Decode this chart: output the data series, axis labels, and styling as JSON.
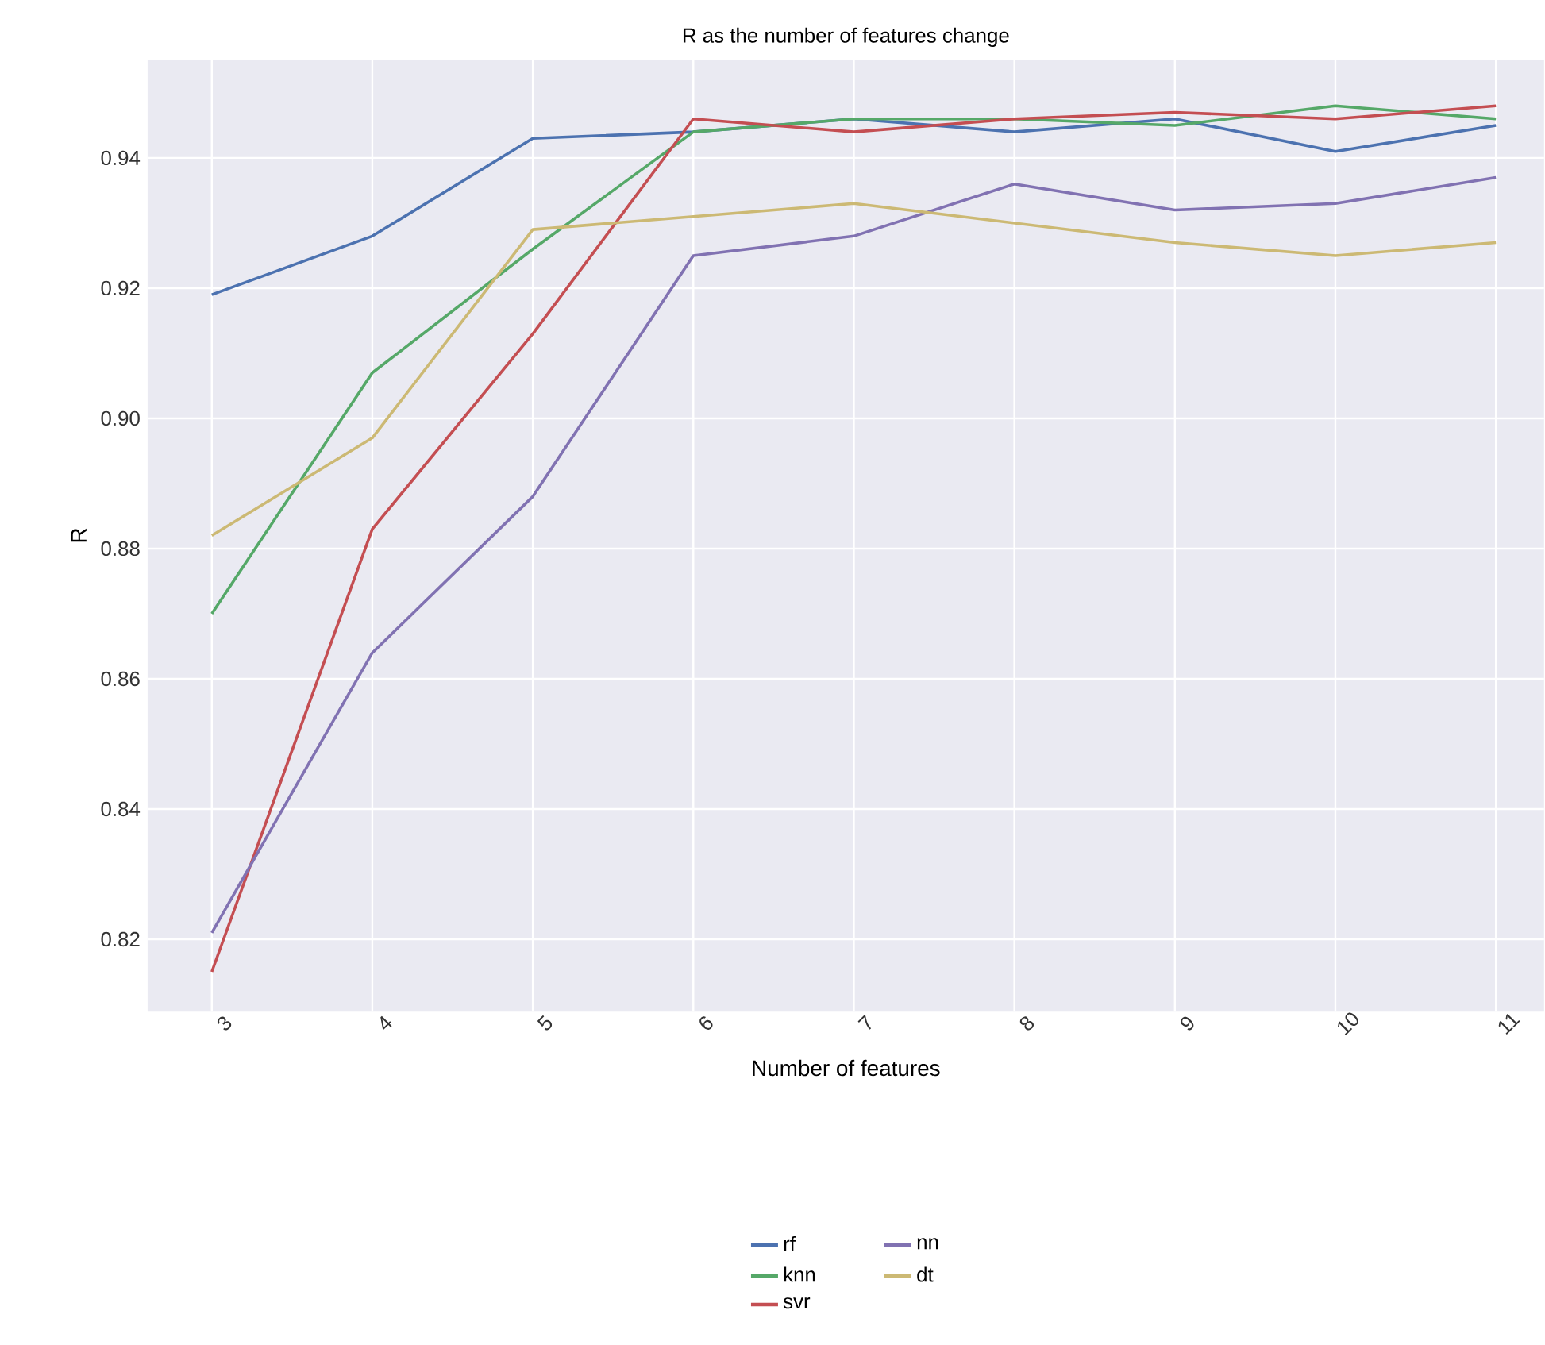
{
  "chart_data": {
    "type": "line",
    "title": "R as the number of features change",
    "xlabel": "Number of features",
    "ylabel": "R",
    "x": [
      3,
      4,
      5,
      6,
      7,
      8,
      9,
      10,
      11
    ],
    "series": [
      {
        "name": "rf",
        "color": "#4c72b0",
        "values": [
          0.919,
          0.928,
          0.943,
          0.944,
          0.946,
          0.944,
          0.946,
          0.941,
          0.945
        ]
      },
      {
        "name": "knn",
        "color": "#55a868",
        "values": [
          0.87,
          0.907,
          0.926,
          0.944,
          0.946,
          0.946,
          0.945,
          0.948,
          0.946
        ]
      },
      {
        "name": "svr",
        "color": "#c44e52",
        "values": [
          0.815,
          0.883,
          0.913,
          0.946,
          0.944,
          0.946,
          0.947,
          0.946,
          0.948
        ]
      },
      {
        "name": "nn",
        "color": "#8172b2",
        "values": [
          0.821,
          0.864,
          0.888,
          0.925,
          0.928,
          0.936,
          0.932,
          0.933,
          0.937
        ]
      },
      {
        "name": "dt",
        "color": "#ccb974",
        "values": [
          0.882,
          0.897,
          0.929,
          0.931,
          0.933,
          0.93,
          0.927,
          0.925,
          0.927
        ]
      }
    ],
    "xlim": [
      2.6,
      11.3
    ],
    "ylim": [
      0.809,
      0.955
    ],
    "xticks": [
      3,
      4,
      5,
      6,
      7,
      8,
      9,
      10,
      11
    ],
    "yticks": [
      {
        "value": 0.82,
        "label": "0.82"
      },
      {
        "value": 0.84,
        "label": "0.84"
      },
      {
        "value": 0.86,
        "label": "0.86"
      },
      {
        "value": 0.88,
        "label": "0.88"
      },
      {
        "value": 0.9,
        "label": "0.90"
      },
      {
        "value": 0.92,
        "label": "0.92"
      },
      {
        "value": 0.94,
        "label": "0.94"
      }
    ],
    "grid": true,
    "legend": "bottom",
    "marker": "none",
    "line_style": "solid"
  }
}
